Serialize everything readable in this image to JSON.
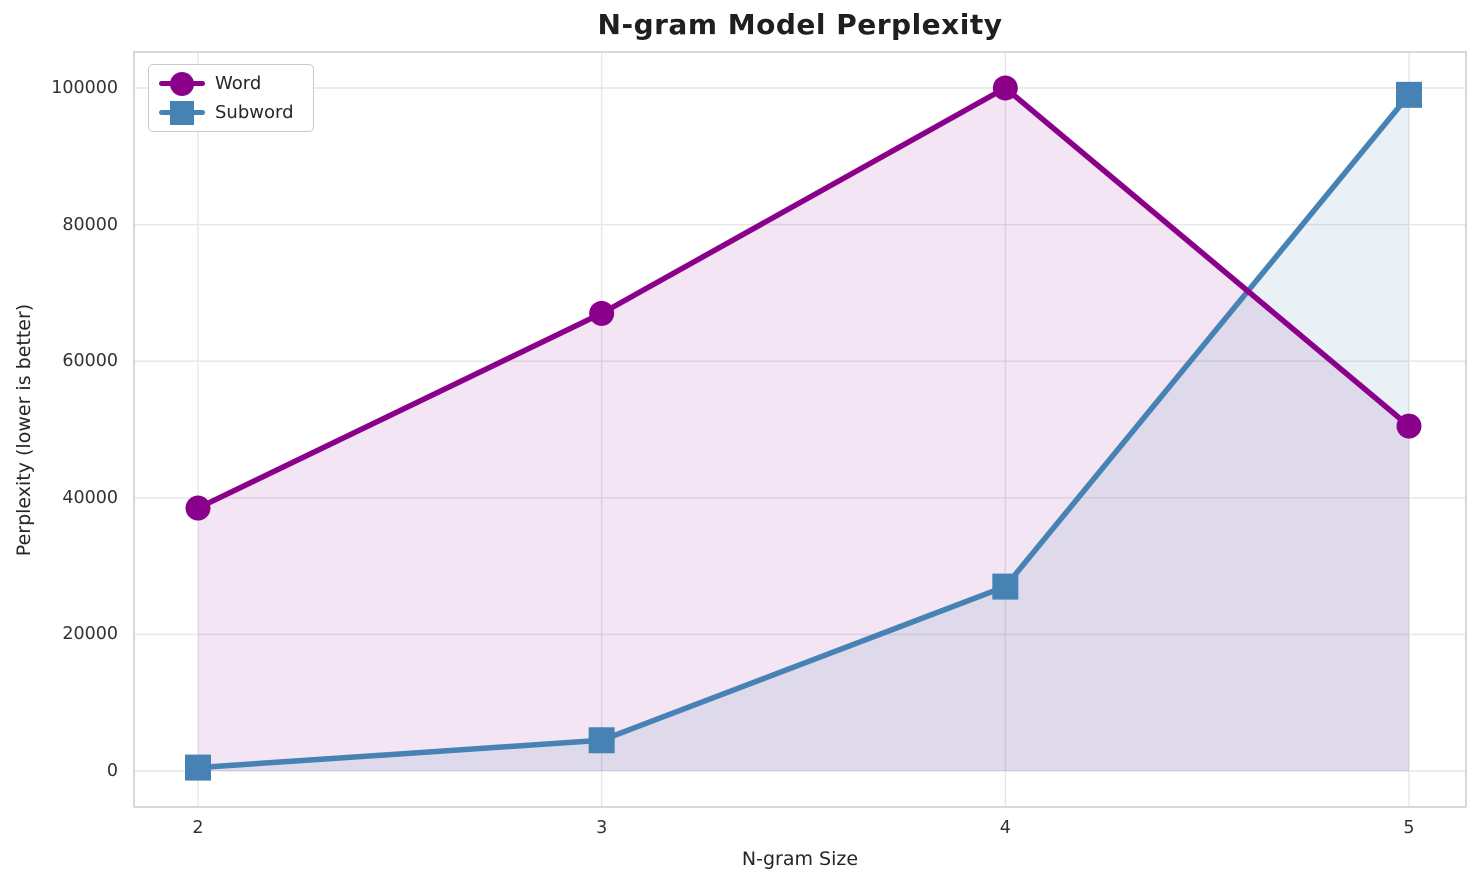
{
  "chart_data": {
    "type": "line",
    "title": "N-gram Model Perplexity",
    "xlabel": "N-gram Size",
    "ylabel": "Perplexity (lower is better)",
    "categories": [
      2,
      3,
      4,
      5
    ],
    "xtick_labels": [
      "2",
      "3",
      "4",
      "5"
    ],
    "yticks": [
      0,
      20000,
      40000,
      60000,
      80000,
      100000
    ],
    "ytick_labels": [
      "0",
      "20000",
      "40000",
      "60000",
      "80000",
      "100000"
    ],
    "ylim": [
      0,
      100000
    ],
    "grid": true,
    "legend_position": "upper left",
    "background_color": "#ffffff",
    "gridline_color": "#e6e6e6",
    "spine_color": "#cfcfcf",
    "series": [
      {
        "name": "Word",
        "color": "#8B008B",
        "marker": "circle",
        "fill_opacity": 0.1,
        "values": [
          38500,
          67000,
          100000,
          50500
        ]
      },
      {
        "name": "Subword",
        "color": "#4682B4",
        "marker": "square",
        "fill_opacity": 0.12,
        "values": [
          500,
          4500,
          27000,
          99000
        ]
      }
    ]
  }
}
